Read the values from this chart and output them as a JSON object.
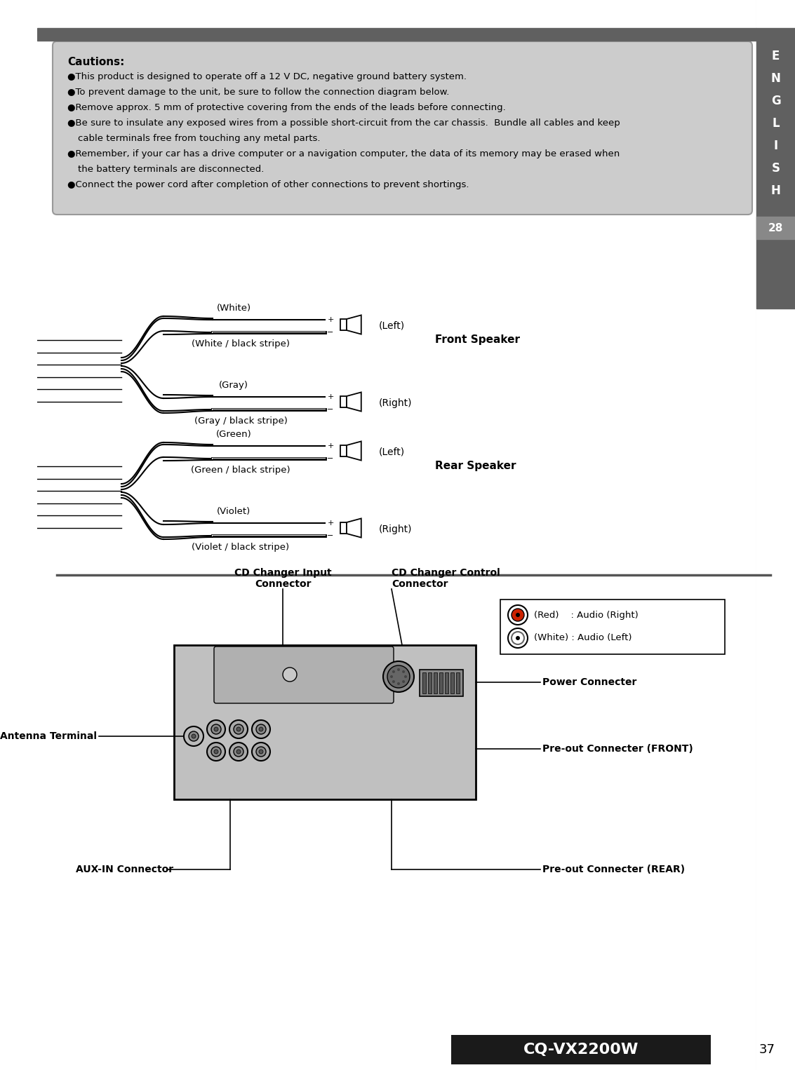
{
  "page_bg": "#ffffff",
  "sidebar_color": "#606060",
  "sidebar_num_bg": "#888888",
  "sidebar_text": [
    "E",
    "N",
    "G",
    "L",
    "I",
    "S",
    "H"
  ],
  "sidebar_num": "28",
  "top_bar_color": "#606060",
  "caution_bg": "#cccccc",
  "caution_title": "Cautions:",
  "caution_lines": [
    "This product is designed to operate off a 12 V DC, negative ground battery system.",
    "To prevent damage to the unit, be sure to follow the connection diagram below.",
    "Remove approx. 5 mm of protective covering from the ends of the leads before connecting.",
    "Be sure to insulate any exposed wires from a possible short-circuit from the car chassis.  Bundle all cables and keep",
    "    cable terminals free from touching any metal parts.",
    "Remember, if your car has a drive computer or a navigation computer, the data of its memory may be erased when",
    "    the battery terminals are disconnected.",
    "Connect the power cord after completion of other connections to prevent shortings."
  ],
  "front_wires": [
    {
      "label": "(White)",
      "stripe": false
    },
    {
      "label": "(White / black stripe)",
      "stripe": true
    },
    {
      "label": "(Gray)",
      "stripe": false
    },
    {
      "label": "(Gray / black stripe)",
      "stripe": true
    }
  ],
  "rear_wires": [
    {
      "label": "(Green)",
      "stripe": false
    },
    {
      "label": "(Green / black stripe)",
      "stripe": true
    },
    {
      "label": "(Violet)",
      "stripe": false
    },
    {
      "label": "(Violet / black stripe)",
      "stripe": true
    }
  ],
  "front_speaker_label": "Front Speaker",
  "rear_speaker_label": "Rear Speaker",
  "bottom_bar_color": "#1a1a1a",
  "model_label": "CQ-VX2200W",
  "page_number": "37",
  "connector_labels": {
    "cd_changer_input": "CD Changer Input\nConnector",
    "cd_changer_control": "CD Changer Control\nConnector",
    "antenna": "Antenna Terminal",
    "power": "Power Connecter",
    "pre_out_front": "Pre-out Connecter (FRONT)",
    "pre_out_rear": "Pre-out Connecter (REAR)",
    "aux_in": "AUX-IN Connector",
    "audio_right": "(Red)    : Audio (Right)",
    "audio_left": "(White) : Audio (Left)"
  }
}
